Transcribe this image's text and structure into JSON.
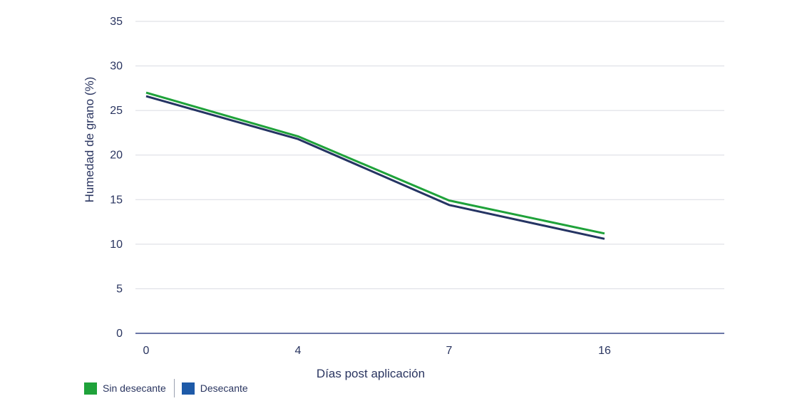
{
  "chart_data": {
    "type": "line",
    "xlabel": "Días post aplicación",
    "ylabel": "Humedad de grano (%)",
    "categories": [
      "0",
      "4",
      "7",
      "16"
    ],
    "ylim": [
      0,
      35
    ],
    "yticks": [
      "0",
      "5",
      "10",
      "15",
      "20",
      "25",
      "30",
      "35"
    ],
    "grid": true,
    "legend_position": "bottom-left",
    "series": [
      {
        "name": "Sin desecante",
        "color": "#1fa23a",
        "values": [
          27.0,
          22.1,
          14.9,
          11.2
        ]
      },
      {
        "name": "Desecante",
        "color": "#253463",
        "values": [
          26.6,
          21.8,
          14.4,
          10.6
        ]
      }
    ]
  },
  "legend": {
    "items": [
      {
        "label": "Sin desecante",
        "swatch_color": "#1fa23a"
      },
      {
        "label": "Desecante",
        "swatch_color": "#1e5aa8"
      }
    ]
  }
}
